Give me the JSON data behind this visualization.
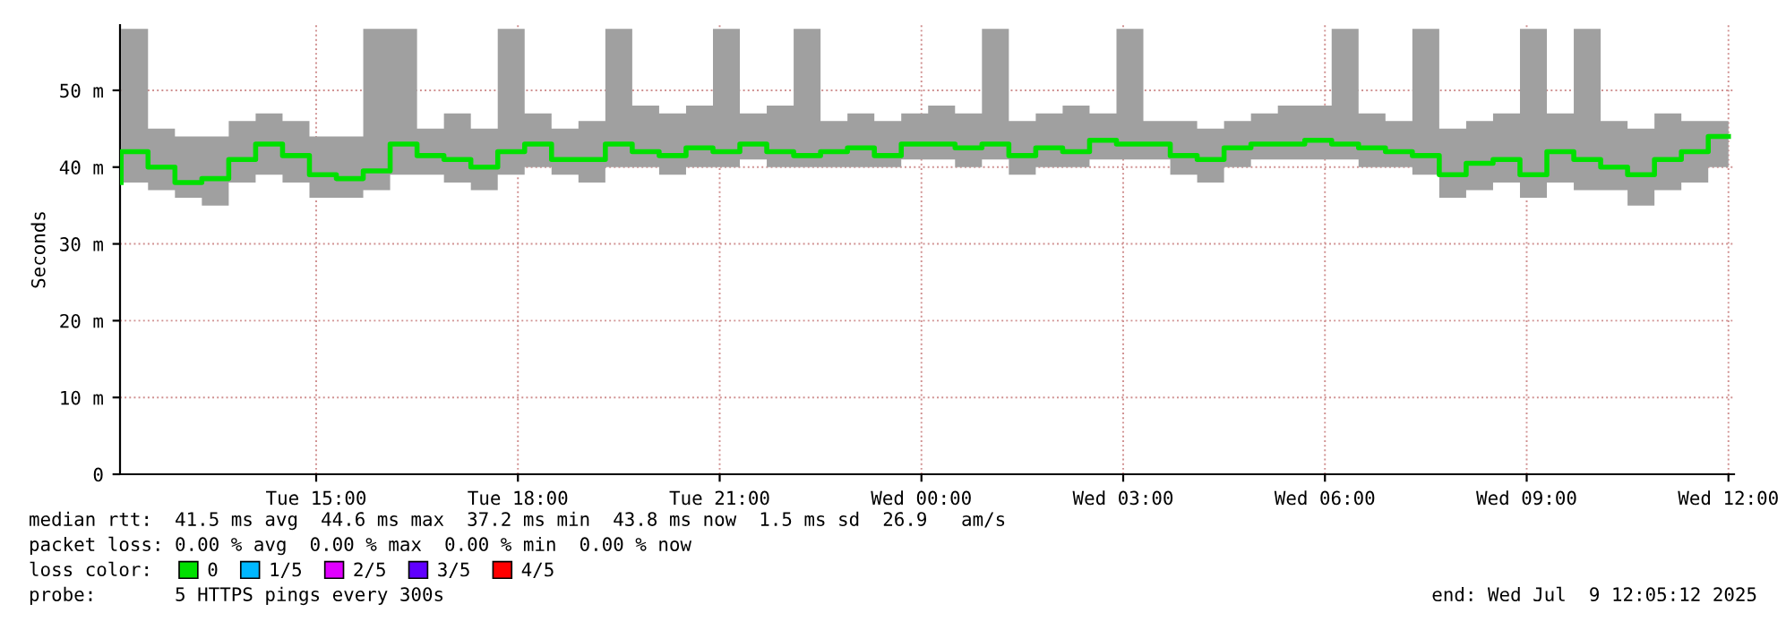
{
  "chart_data": {
    "type": "step",
    "ylabel": "Seconds",
    "x": [
      "2025-07-08T12:06",
      "2025-07-08T12:30",
      "2025-07-08T12:54",
      "2025-07-08T13:18",
      "2025-07-08T13:42",
      "2025-07-08T14:06",
      "2025-07-08T14:30",
      "2025-07-08T14:54",
      "2025-07-08T15:18",
      "2025-07-08T15:42",
      "2025-07-08T16:06",
      "2025-07-08T16:30",
      "2025-07-08T16:54",
      "2025-07-08T17:18",
      "2025-07-08T17:42",
      "2025-07-08T18:06",
      "2025-07-08T18:30",
      "2025-07-08T18:54",
      "2025-07-08T19:18",
      "2025-07-08T19:42",
      "2025-07-08T20:06",
      "2025-07-08T20:30",
      "2025-07-08T20:54",
      "2025-07-08T21:18",
      "2025-07-08T21:42",
      "2025-07-08T22:06",
      "2025-07-08T22:30",
      "2025-07-08T22:54",
      "2025-07-08T23:18",
      "2025-07-08T23:42",
      "2025-07-09T00:06",
      "2025-07-09T00:30",
      "2025-07-09T00:54",
      "2025-07-09T01:18",
      "2025-07-09T01:42",
      "2025-07-09T02:06",
      "2025-07-09T02:30",
      "2025-07-09T02:54",
      "2025-07-09T03:18",
      "2025-07-09T03:42",
      "2025-07-09T04:06",
      "2025-07-09T04:30",
      "2025-07-09T04:54",
      "2025-07-09T05:18",
      "2025-07-09T05:42",
      "2025-07-09T06:06",
      "2025-07-09T06:30",
      "2025-07-09T06:54",
      "2025-07-09T07:18",
      "2025-07-09T07:42",
      "2025-07-09T08:06",
      "2025-07-09T08:30",
      "2025-07-09T08:54",
      "2025-07-09T09:18",
      "2025-07-09T09:42",
      "2025-07-09T10:06",
      "2025-07-09T10:30",
      "2025-07-09T10:54",
      "2025-07-09T11:18",
      "2025-07-09T11:42",
      "2025-07-09T12:00"
    ],
    "series": [
      {
        "name": "0",
        "color": "#00e000",
        "values": [
          38,
          42,
          40,
          38,
          38.5,
          41,
          43,
          41.5,
          39,
          38.5,
          39.5,
          43,
          41.5,
          41,
          40,
          42,
          43,
          41,
          41,
          43,
          42,
          41.5,
          42.5,
          42,
          43,
          42,
          41.5,
          42,
          42.5,
          41.5,
          43,
          43,
          42.5,
          43,
          41.5,
          42.5,
          42,
          43.5,
          43,
          43,
          41.5,
          41,
          42.5,
          43,
          43,
          43.5,
          43,
          42.5,
          42,
          41.5,
          39,
          40.5,
          41,
          39,
          42,
          41,
          40,
          39,
          41,
          42,
          44
        ],
        "lower": [
          36,
          38,
          37,
          36,
          35,
          38,
          39,
          38,
          36,
          36,
          37,
          39,
          39,
          38,
          37,
          39,
          40,
          39,
          38,
          40,
          40,
          39,
          40,
          40,
          41,
          40,
          40,
          40,
          40,
          40,
          41,
          41,
          40,
          41,
          39,
          40,
          40,
          41,
          41,
          41,
          39,
          38,
          40,
          41,
          41,
          41,
          41,
          40,
          40,
          39,
          36,
          37,
          38,
          36,
          38,
          37,
          37,
          35,
          37,
          38,
          40
        ],
        "upper": [
          46,
          58,
          45,
          44,
          44,
          46,
          47,
          46,
          44,
          44,
          58,
          58,
          45,
          47,
          45,
          58,
          47,
          45,
          46,
          58,
          48,
          47,
          48,
          58,
          47,
          48,
          58,
          46,
          47,
          46,
          47,
          48,
          47,
          58,
          46,
          47,
          48,
          47,
          58,
          46,
          46,
          45,
          46,
          47,
          48,
          48,
          58,
          47,
          46,
          58,
          45,
          46,
          47,
          58,
          47,
          58,
          46,
          45,
          47,
          46,
          46
        ]
      },
      {
        "name": "1/5",
        "color": "#00b8ff",
        "values": [
          null,
          null,
          null,
          null,
          null,
          null,
          null,
          null,
          null,
          null,
          null,
          null,
          null,
          null,
          null,
          null,
          null,
          null,
          null,
          null,
          null,
          null,
          null,
          null,
          null,
          null,
          null,
          null,
          null,
          null,
          null,
          null,
          null,
          null,
          null,
          null,
          null,
          null,
          null,
          null,
          null,
          null,
          null,
          null,
          null,
          null,
          null,
          null,
          null,
          null,
          null,
          null,
          null,
          null,
          null,
          null,
          null,
          null,
          null,
          null,
          null
        ]
      },
      {
        "name": "2/5",
        "color": "#e000ff",
        "values": [
          null,
          null,
          null,
          null,
          null,
          null,
          null,
          null,
          null,
          null,
          null,
          null,
          null,
          null,
          null,
          null,
          null,
          null,
          null,
          null,
          null,
          null,
          null,
          null,
          null,
          null,
          null,
          null,
          null,
          null,
          null,
          null,
          null,
          null,
          null,
          null,
          null,
          null,
          null,
          null,
          null,
          null,
          null,
          null,
          null,
          null,
          null,
          null,
          null,
          null,
          null,
          null,
          null,
          null,
          null,
          null,
          null,
          null,
          null,
          null,
          null
        ]
      },
      {
        "name": "3/5",
        "color": "#6000ff",
        "values": [
          null,
          null,
          null,
          null,
          null,
          null,
          null,
          null,
          null,
          null,
          null,
          null,
          null,
          null,
          null,
          null,
          null,
          null,
          null,
          null,
          null,
          null,
          null,
          null,
          null,
          null,
          null,
          null,
          null,
          null,
          null,
          null,
          null,
          null,
          null,
          null,
          null,
          null,
          null,
          null,
          null,
          null,
          null,
          null,
          null,
          null,
          null,
          null,
          null,
          null,
          null,
          null,
          null,
          null,
          null,
          null,
          null,
          null,
          null,
          null,
          null
        ]
      },
      {
        "name": "4/5",
        "color": "#ff0000",
        "values": [
          null,
          null,
          null,
          null,
          null,
          null,
          null,
          null,
          null,
          null,
          null,
          null,
          null,
          null,
          null,
          null,
          null,
          null,
          null,
          null,
          null,
          null,
          null,
          null,
          null,
          null,
          null,
          null,
          null,
          null,
          null,
          null,
          null,
          null,
          null,
          null,
          null,
          null,
          null,
          null,
          null,
          null,
          null,
          null,
          null,
          null,
          null,
          null,
          null,
          null,
          null,
          null,
          null,
          null,
          null,
          null,
          null,
          null,
          null,
          null,
          null
        ]
      }
    ],
    "xlim": [
      "2025-07-08T12:05",
      "2025-07-09T12:05"
    ],
    "xticks": [
      {
        "value": "2025-07-08T15:00",
        "label": "Tue 15:00"
      },
      {
        "value": "2025-07-08T18:00",
        "label": "Tue 18:00"
      },
      {
        "value": "2025-07-08T21:00",
        "label": "Tue 21:00"
      },
      {
        "value": "2025-07-09T00:00",
        "label": "Wed 00:00"
      },
      {
        "value": "2025-07-09T03:00",
        "label": "Wed 03:00"
      },
      {
        "value": "2025-07-09T06:00",
        "label": "Wed 06:00"
      },
      {
        "value": "2025-07-09T09:00",
        "label": "Wed 09:00"
      },
      {
        "value": "2025-07-09T12:00",
        "label": "Wed 12:00"
      }
    ],
    "ylim": [
      0,
      58.5
    ],
    "yticks": [
      0,
      {
        "value": 10,
        "label": "10 m"
      },
      {
        "value": 20,
        "label": "20 m"
      },
      {
        "value": 30,
        "label": "30 m"
      },
      {
        "value": 40,
        "label": "40 m"
      },
      {
        "value": 50,
        "label": "50 m"
      }
    ],
    "grid": true,
    "legend": "bottom",
    "legend_title": "loss color:",
    "annotations": [
      "median rtt:  41.5 ms avg  44.6 ms max  37.2 ms min  43.8 ms now  1.5 ms sd  26.9   am/s",
      "packet loss: 0.00 % avg  0.00 % max  0.00 % min  0.00 % now",
      "probe:       5 HTTPS pings every 300s",
      "end: Wed Jul  9 12:05:12 2025"
    ]
  }
}
